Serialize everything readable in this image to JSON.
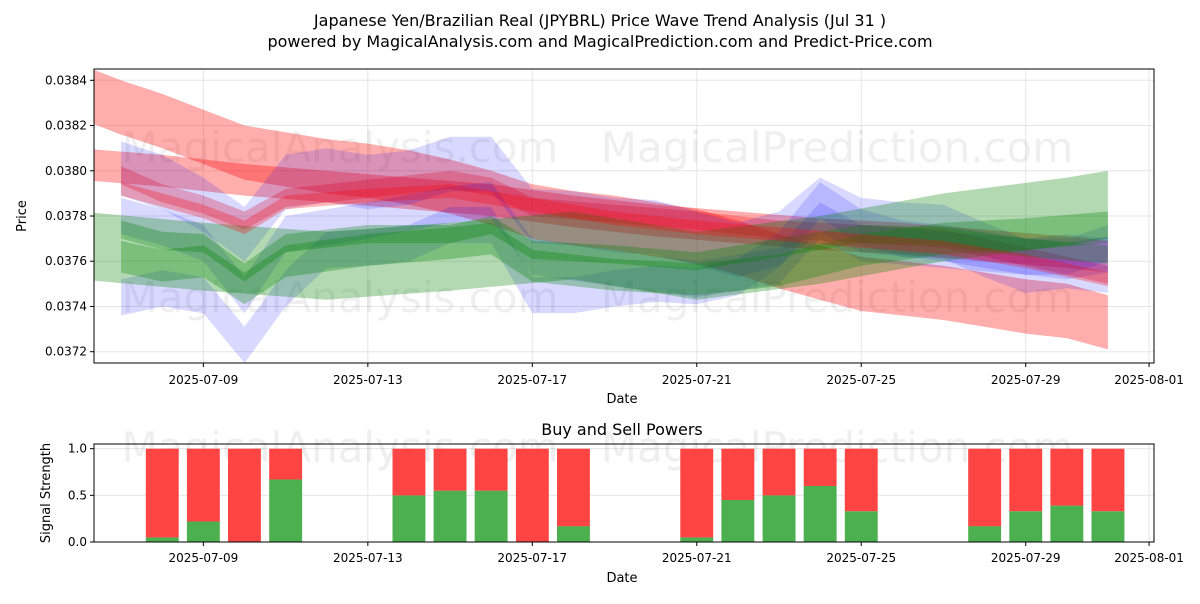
{
  "chart_data": [
    {
      "type": "area",
      "title_line1": "Japanese Yen/Brazilian Real (JPYBRL) Price Wave Trend Analysis (Jul 31 )",
      "title_line2": "powered by MagicalAnalysis.com and MagicalPrediction.com and Predict-Price.com",
      "xlabel": "Date",
      "ylabel": "Price",
      "xlim": [
        "2025-07-06",
        "2025-08-01"
      ],
      "ylim": [
        0.03715,
        0.03845
      ],
      "x_ticks": [
        "2025-07-09",
        "2025-07-13",
        "2025-07-17",
        "2025-07-21",
        "2025-07-25",
        "2025-07-29",
        "2025-08-01"
      ],
      "y_ticks": [
        0.0372,
        0.0374,
        0.0376,
        0.0378,
        0.038,
        0.0382,
        0.0384
      ],
      "grid": true,
      "watermarks": [
        "MagicalAnalysis.com",
        "MagicalPrediction.com"
      ],
      "series": [
        {
          "color": "#ff0000",
          "opacity": 0.32,
          "x": [
            "2025-07-06",
            "2025-07-07",
            "2025-07-08",
            "2025-07-09",
            "2025-07-10",
            "2025-07-11",
            "2025-07-12",
            "2025-07-13",
            "2025-07-14",
            "2025-07-15",
            "2025-07-16",
            "2025-07-17",
            "2025-07-18",
            "2025-07-19",
            "2025-07-20",
            "2025-07-21",
            "2025-07-22",
            "2025-07-23",
            "2025-07-24",
            "2025-07-25",
            "2025-07-26",
            "2025-07-27",
            "2025-07-28",
            "2025-07-29",
            "2025-07-30",
            "2025-07-31"
          ],
          "y": [
            0.03835,
            0.03828,
            0.03822,
            0.03815,
            0.03808,
            0.03805,
            0.03802,
            0.038,
            0.03797,
            0.03793,
            0.03788,
            0.03782,
            0.03779,
            0.03777,
            0.03774,
            0.03771,
            0.03766,
            0.0376,
            0.03755,
            0.0375,
            0.03748,
            0.03746,
            0.03743,
            0.0374,
            0.03738,
            0.03733
          ],
          "w": [
            0.00012,
            0.00012,
            0.00012,
            0.00012,
            0.00012,
            0.00012,
            0.00012,
            0.00012,
            0.00012,
            0.00012,
            0.00012,
            0.00012,
            0.00012,
            0.00012,
            0.00012,
            0.00012,
            0.00012,
            0.00012,
            0.00012,
            0.00012,
            0.00012,
            0.00012,
            0.00012,
            0.00012,
            0.00012,
            0.00012
          ]
        },
        {
          "color": "#ff0000",
          "opacity": 0.32,
          "x": [
            "2025-07-06",
            "2025-07-08",
            "2025-07-10",
            "2025-07-12",
            "2025-07-14",
            "2025-07-16",
            "2025-07-18",
            "2025-07-20",
            "2025-07-22",
            "2025-07-24",
            "2025-07-26",
            "2025-07-28",
            "2025-07-30",
            "2025-07-31"
          ],
          "y": [
            0.03803,
            0.038,
            0.03796,
            0.03793,
            0.0379,
            0.03787,
            0.03782,
            0.03778,
            0.03775,
            0.03772,
            0.0377,
            0.03767,
            0.03764,
            0.03762
          ],
          "w": [
            7e-05,
            7e-05,
            7e-05,
            7e-05,
            7e-05,
            7e-05,
            7e-05,
            7e-05,
            7e-05,
            7e-05,
            7e-05,
            7e-05,
            7e-05,
            7e-05
          ]
        },
        {
          "color": "#ff0000",
          "opacity": 0.28,
          "x": [
            "2025-07-07",
            "2025-07-08",
            "2025-07-09",
            "2025-07-10",
            "2025-07-11",
            "2025-07-13",
            "2025-07-14",
            "2025-07-15",
            "2025-07-16",
            "2025-07-17",
            "2025-07-19",
            "2025-07-21",
            "2025-07-23",
            "2025-07-25",
            "2025-07-27",
            "2025-07-29",
            "2025-07-30",
            "2025-07-31"
          ],
          "y": [
            0.03798,
            0.0379,
            0.03785,
            0.03778,
            0.03788,
            0.03792,
            0.03794,
            0.03796,
            0.03793,
            0.03784,
            0.03781,
            0.03778,
            0.03774,
            0.03772,
            0.0377,
            0.03762,
            0.03758,
            0.03754
          ],
          "w": [
            4e-05,
            4e-05,
            4e-05,
            4e-05,
            4e-05,
            4e-05,
            4e-05,
            4e-05,
            4e-05,
            4e-05,
            4e-05,
            4e-05,
            4e-05,
            4e-05,
            4e-05,
            4e-05,
            4e-05,
            4e-05
          ]
        },
        {
          "color": "#0000ff",
          "opacity": 0.15,
          "x": [
            "2025-07-07",
            "2025-07-08",
            "2025-07-09",
            "2025-07-10",
            "2025-07-11",
            "2025-07-12",
            "2025-07-13",
            "2025-07-14",
            "2025-07-15",
            "2025-07-16",
            "2025-07-17",
            "2025-07-18",
            "2025-07-19",
            "2025-07-20",
            "2025-07-21",
            "2025-07-22",
            "2025-07-23",
            "2025-07-24",
            "2025-07-25",
            "2025-07-26",
            "2025-07-27",
            "2025-07-28",
            "2025-07-29",
            "2025-07-30",
            "2025-07-31"
          ],
          "y": [
            0.03801,
            0.03795,
            0.03785,
            0.03772,
            0.03795,
            0.03798,
            0.03795,
            0.03797,
            0.03803,
            0.03803,
            0.0378,
            0.03779,
            0.03776,
            0.03775,
            0.0377,
            0.03765,
            0.0377,
            0.03785,
            0.03776,
            0.03774,
            0.03773,
            0.03765,
            0.03758,
            0.0376,
            0.03758
          ],
          "w": [
            0.00012,
            0.00012,
            0.00012,
            0.00012,
            0.00012,
            0.00012,
            0.00012,
            0.00012,
            0.00012,
            0.00012,
            0.00012,
            0.00012,
            0.00012,
            0.00012,
            0.00012,
            0.00012,
            0.00012,
            0.00012,
            0.00012,
            0.00012,
            0.00012,
            0.00012,
            0.00012,
            0.00012,
            0.00012
          ]
        },
        {
          "color": "#0000ff",
          "opacity": 0.15,
          "x": [
            "2025-07-07",
            "2025-07-08",
            "2025-07-09",
            "2025-07-10",
            "2025-07-11",
            "2025-07-12",
            "2025-07-13",
            "2025-07-14",
            "2025-07-15",
            "2025-07-16",
            "2025-07-17",
            "2025-07-18",
            "2025-07-19",
            "2025-07-20",
            "2025-07-21",
            "2025-07-22",
            "2025-07-23",
            "2025-07-24",
            "2025-07-25",
            "2025-07-26",
            "2025-07-27",
            "2025-07-28",
            "2025-07-29",
            "2025-07-30",
            "2025-07-31"
          ],
          "y": [
            0.03744,
            0.03748,
            0.03745,
            0.03723,
            0.03748,
            0.03765,
            0.03766,
            0.03768,
            0.03776,
            0.03776,
            0.03745,
            0.03745,
            0.03748,
            0.0375,
            0.03749,
            0.03753,
            0.03765,
            0.03787,
            0.03775,
            0.0377,
            0.03768,
            0.03765,
            0.03762,
            0.03762,
            0.03768
          ],
          "w": [
            8e-05,
            8e-05,
            8e-05,
            8e-05,
            8e-05,
            8e-05,
            8e-05,
            8e-05,
            8e-05,
            8e-05,
            8e-05,
            8e-05,
            8e-05,
            8e-05,
            8e-05,
            8e-05,
            8e-05,
            8e-05,
            8e-05,
            8e-05,
            8e-05,
            8e-05,
            8e-05,
            8e-05,
            8e-05
          ]
        },
        {
          "color": "#0000ff",
          "opacity": 0.15,
          "x": [
            "2025-07-07",
            "2025-07-08",
            "2025-07-09",
            "2025-07-10",
            "2025-07-11",
            "2025-07-13",
            "2025-07-15",
            "2025-07-16",
            "2025-07-17",
            "2025-07-19",
            "2025-07-21",
            "2025-07-23",
            "2025-07-24",
            "2025-07-25",
            "2025-07-27",
            "2025-07-29",
            "2025-07-30",
            "2025-07-31"
          ],
          "y": [
            0.0378,
            0.03775,
            0.03768,
            0.03745,
            0.03772,
            0.03778,
            0.03785,
            0.03787,
            0.03762,
            0.03757,
            0.03752,
            0.03758,
            0.03778,
            0.03768,
            0.03765,
            0.03762,
            0.0376,
            0.03763
          ],
          "w": [
            8e-05,
            8e-05,
            8e-05,
            8e-05,
            8e-05,
            8e-05,
            8e-05,
            8e-05,
            8e-05,
            8e-05,
            8e-05,
            8e-05,
            8e-05,
            8e-05,
            8e-05,
            8e-05,
            8e-05,
            8e-05
          ]
        },
        {
          "color": "#008000",
          "opacity": 0.3,
          "x": [
            "2025-07-06",
            "2025-07-09",
            "2025-07-12",
            "2025-07-15",
            "2025-07-18",
            "2025-07-21",
            "2025-07-24",
            "2025-07-27",
            "2025-07-30",
            "2025-07-31"
          ],
          "y": [
            0.03767,
            0.03762,
            0.03758,
            0.03762,
            0.03767,
            0.03758,
            0.03765,
            0.03775,
            0.03782,
            0.03785
          ],
          "w": [
            0.00015,
            0.00015,
            0.00015,
            0.00015,
            0.00015,
            0.00015,
            0.00015,
            0.00015,
            0.00015,
            0.00015
          ]
        },
        {
          "color": "#008000",
          "opacity": 0.3,
          "x": [
            "2025-07-07",
            "2025-07-08",
            "2025-07-09",
            "2025-07-10",
            "2025-07-11",
            "2025-07-13",
            "2025-07-15",
            "2025-07-16",
            "2025-07-17",
            "2025-07-19",
            "2025-07-21",
            "2025-07-23",
            "2025-07-25",
            "2025-07-27",
            "2025-07-29",
            "2025-07-31"
          ],
          "y": [
            0.03774,
            0.03769,
            0.03768,
            0.03755,
            0.03768,
            0.03772,
            0.03772,
            0.03776,
            0.03765,
            0.03763,
            0.0376,
            0.03766,
            0.03772,
            0.03771,
            0.03766,
            0.03763
          ],
          "w": [
            4e-05,
            4e-05,
            4e-05,
            4e-05,
            4e-05,
            4e-05,
            4e-05,
            4e-05,
            4e-05,
            4e-05,
            4e-05,
            4e-05,
            4e-05,
            4e-05,
            4e-05,
            4e-05
          ]
        },
        {
          "color": "#008000",
          "opacity": 0.3,
          "x": [
            "2025-07-07",
            "2025-07-08",
            "2025-07-09",
            "2025-07-10",
            "2025-07-11",
            "2025-07-13",
            "2025-07-15",
            "2025-07-16",
            "2025-07-17",
            "2025-07-19",
            "2025-07-21",
            "2025-07-23",
            "2025-07-25",
            "2025-07-27",
            "2025-07-29",
            "2025-07-31"
          ],
          "y": [
            0.03762,
            0.03758,
            0.0376,
            0.03748,
            0.0376,
            0.03765,
            0.03768,
            0.0377,
            0.03758,
            0.03754,
            0.03752,
            0.03756,
            0.03765,
            0.0377,
            0.03772,
            0.03775
          ],
          "w": [
            7e-05,
            7e-05,
            7e-05,
            7e-05,
            7e-05,
            7e-05,
            7e-05,
            7e-05,
            7e-05,
            7e-05,
            7e-05,
            7e-05,
            7e-05,
            7e-05,
            7e-05,
            7e-05
          ]
        },
        {
          "color": "#ff0000",
          "opacity": 0.28,
          "x": [
            "2025-07-07",
            "2025-07-09",
            "2025-07-10",
            "2025-07-11",
            "2025-07-13",
            "2025-07-15",
            "2025-07-17",
            "2025-07-19",
            "2025-07-21",
            "2025-07-23",
            "2025-07-25",
            "2025-07-27",
            "2025-07-29",
            "2025-07-31"
          ],
          "y": [
            0.03792,
            0.03782,
            0.03775,
            0.03786,
            0.03789,
            0.03791,
            0.03785,
            0.03779,
            0.03775,
            0.03772,
            0.03769,
            0.03766,
            0.0376,
            0.03752
          ],
          "w": [
            3e-05,
            3e-05,
            3e-05,
            3e-05,
            3e-05,
            3e-05,
            3e-05,
            3e-05,
            3e-05,
            3e-05,
            3e-05,
            3e-05,
            3e-05,
            3e-05
          ]
        }
      ]
    },
    {
      "type": "bar",
      "title": "Buy and Sell Powers",
      "xlabel": "Date",
      "ylabel": "Signal Strength",
      "ylim": [
        0,
        1.05
      ],
      "y_ticks": [
        0.0,
        0.5,
        1.0
      ],
      "x_ticks": [
        "2025-07-09",
        "2025-07-13",
        "2025-07-17",
        "2025-07-21",
        "2025-07-25",
        "2025-07-29",
        "2025-08-01"
      ],
      "grid": true,
      "watermarks": [
        "MagicalAnalysis.com",
        "MagicalPrediction.com"
      ],
      "buy_color": "#4caf50",
      "sell_color": "#ff4444",
      "bars": [
        {
          "date": "2025-07-08",
          "buy": 0.05
        },
        {
          "date": "2025-07-09",
          "buy": 0.22
        },
        {
          "date": "2025-07-10",
          "buy": 0.0
        },
        {
          "date": "2025-07-11",
          "buy": 0.67
        },
        {
          "date": "2025-07-14",
          "buy": 0.5
        },
        {
          "date": "2025-07-15",
          "buy": 0.55
        },
        {
          "date": "2025-07-16",
          "buy": 0.55
        },
        {
          "date": "2025-07-17",
          "buy": 0.0
        },
        {
          "date": "2025-07-18",
          "buy": 0.17
        },
        {
          "date": "2025-07-21",
          "buy": 0.05
        },
        {
          "date": "2025-07-22",
          "buy": 0.45
        },
        {
          "date": "2025-07-23",
          "buy": 0.5
        },
        {
          "date": "2025-07-24",
          "buy": 0.6
        },
        {
          "date": "2025-07-25",
          "buy": 0.33
        },
        {
          "date": "2025-07-28",
          "buy": 0.17
        },
        {
          "date": "2025-07-29",
          "buy": 0.33
        },
        {
          "date": "2025-07-30",
          "buy": 0.39
        },
        {
          "date": "2025-07-31",
          "buy": 0.33
        }
      ]
    }
  ]
}
